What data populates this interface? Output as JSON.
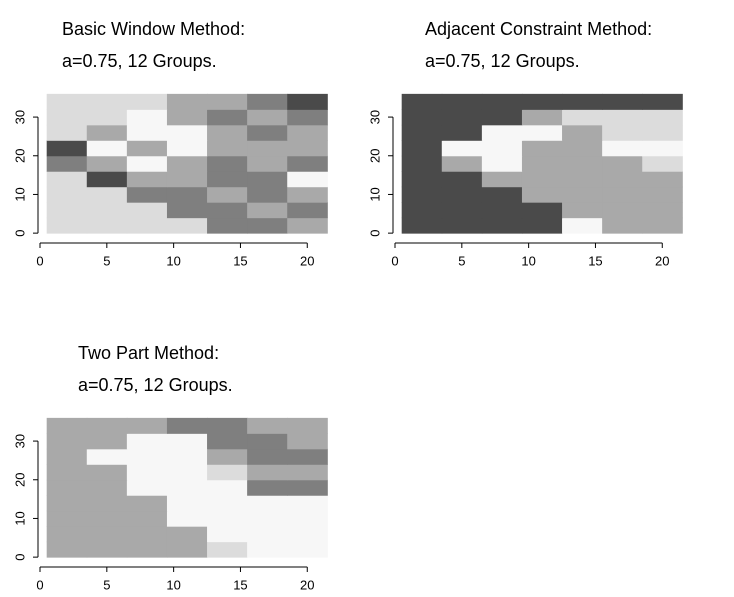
{
  "chart_data": [
    {
      "type": "heatmap",
      "title": "Basic Window Method:",
      "subtitle": "a=0.75,  12  Groups.",
      "colors": [
        "#f7f7f7",
        "#dcdcdc",
        "#a9a9a9",
        "#7f7f7f",
        "#4a4a4a"
      ],
      "x_edges": [
        0.5,
        3.5,
        6.5,
        9.5,
        12.5,
        15.5,
        18.5,
        21.5
      ],
      "y_edges": [
        0,
        4,
        8,
        12,
        16,
        20,
        24,
        28,
        32,
        36
      ],
      "values": [
        [
          1,
          1,
          1,
          1,
          3,
          3,
          2
        ],
        [
          1,
          1,
          1,
          3,
          3,
          2,
          3
        ],
        [
          1,
          1,
          3,
          3,
          2,
          3,
          2
        ],
        [
          1,
          4,
          2,
          2,
          3,
          3,
          0
        ],
        [
          3,
          2,
          0,
          2,
          3,
          2,
          3
        ],
        [
          4,
          0,
          2,
          0,
          2,
          2,
          2
        ],
        [
          1,
          2,
          0,
          0,
          2,
          3,
          2
        ],
        [
          1,
          1,
          0,
          2,
          3,
          2,
          3
        ],
        [
          1,
          1,
          1,
          2,
          2,
          3,
          4
        ]
      ],
      "xlim": [
        -0.3,
        22.3
      ],
      "ylim": [
        -1,
        37
      ],
      "xticks": [
        0,
        5,
        10,
        15,
        20
      ],
      "yticks": [
        0,
        10,
        20,
        30
      ]
    },
    {
      "type": "heatmap",
      "title": "Adjacent Constraint Method:",
      "subtitle": "a=0.75,  12  Groups.",
      "colors": [
        "#f7f7f7",
        "#dcdcdc",
        "#a9a9a9",
        "#7f7f7f",
        "#4a4a4a"
      ],
      "x_edges": [
        0.5,
        3.5,
        6.5,
        9.5,
        12.5,
        15.5,
        18.5,
        21.5
      ],
      "y_edges": [
        0,
        4,
        8,
        12,
        16,
        20,
        24,
        28,
        32,
        36
      ],
      "values": [
        [
          4,
          4,
          4,
          4,
          0,
          2,
          2
        ],
        [
          4,
          4,
          4,
          4,
          2,
          2,
          2
        ],
        [
          4,
          4,
          4,
          2,
          2,
          2,
          2
        ],
        [
          4,
          4,
          2,
          2,
          2,
          2,
          2
        ],
        [
          4,
          2,
          0,
          2,
          2,
          2,
          1
        ],
        [
          4,
          0,
          0,
          2,
          2,
          0,
          0
        ],
        [
          4,
          4,
          0,
          0,
          2,
          1,
          1
        ],
        [
          4,
          4,
          4,
          2,
          1,
          1,
          1
        ],
        [
          4,
          4,
          4,
          4,
          4,
          4,
          4
        ]
      ],
      "xlim": [
        -0.3,
        22.3
      ],
      "ylim": [
        -1,
        37
      ],
      "xticks": [
        0,
        5,
        10,
        15,
        20
      ],
      "yticks": [
        0,
        10,
        20,
        30
      ]
    },
    {
      "type": "heatmap",
      "title": "Two Part Method:",
      "subtitle": "a=0.75, 12  Groups.",
      "colors": [
        "#f7f7f7",
        "#dcdcdc",
        "#a9a9a9",
        "#7f7f7f",
        "#4a4a4a"
      ],
      "x_edges": [
        0.5,
        3.5,
        6.5,
        9.5,
        12.5,
        15.5,
        18.5,
        21.5
      ],
      "y_edges": [
        0,
        4,
        8,
        12,
        16,
        20,
        24,
        28,
        32,
        36
      ],
      "values": [
        [
          2,
          2,
          2,
          2,
          1,
          0,
          0
        ],
        [
          2,
          2,
          2,
          2,
          0,
          0,
          0
        ],
        [
          2,
          2,
          2,
          0,
          0,
          0,
          0
        ],
        [
          2,
          2,
          2,
          0,
          0,
          0,
          0
        ],
        [
          2,
          2,
          0,
          0,
          0,
          3,
          3
        ],
        [
          2,
          2,
          0,
          0,
          1,
          2,
          2
        ],
        [
          2,
          0,
          0,
          0,
          2,
          3,
          3
        ],
        [
          2,
          2,
          0,
          0,
          3,
          3,
          2
        ],
        [
          2,
          2,
          2,
          3,
          3,
          2,
          2
        ]
      ],
      "xlim": [
        -0.3,
        22.3
      ],
      "ylim": [
        -1,
        37
      ],
      "xticks": [
        0,
        5,
        10,
        15,
        20
      ],
      "yticks": [
        0,
        10,
        20,
        30
      ]
    }
  ]
}
